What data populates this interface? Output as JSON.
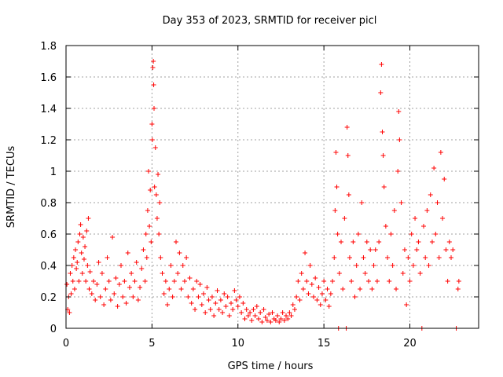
{
  "chart_data": {
    "type": "scatter",
    "title": "Day 353 of 2023, SRMTID for receiver picl",
    "xlabel": "GPS time / hours",
    "ylabel": "SRMTID / TECUs",
    "xlim": [
      0,
      24
    ],
    "ylim": [
      0,
      1.8
    ],
    "xticks": [
      0,
      5,
      10,
      15,
      20
    ],
    "xtick_labels": [
      "0",
      "5",
      "10",
      "15",
      "20"
    ],
    "yticks": [
      0,
      0.2,
      0.4,
      0.6,
      0.8,
      1,
      1.2,
      1.4,
      1.6,
      1.8
    ],
    "ytick_labels": [
      "0",
      "0.2",
      "0.4",
      "0.6",
      "0.8",
      "1",
      "1.2",
      "1.4",
      "1.6",
      "1.8"
    ],
    "grid": true,
    "marker": "+",
    "marker_color": "#ff0000",
    "series": [
      {
        "name": "SRMTID",
        "points": [
          [
            0.05,
            0.28
          ],
          [
            0.1,
            0.12
          ],
          [
            0.15,
            0.2
          ],
          [
            0.2,
            0.1
          ],
          [
            0.25,
            0.35
          ],
          [
            0.3,
            0.22
          ],
          [
            0.35,
            0.4
          ],
          [
            0.4,
            0.3
          ],
          [
            0.45,
            0.45
          ],
          [
            0.5,
            0.25
          ],
          [
            0.55,
            0.5
          ],
          [
            0.6,
            0.38
          ],
          [
            0.65,
            0.42
          ],
          [
            0.7,
            0.55
          ],
          [
            0.75,
            0.3
          ],
          [
            0.8,
            0.6
          ],
          [
            0.85,
            0.66
          ],
          [
            0.9,
            0.48
          ],
          [
            0.95,
            0.35
          ],
          [
            1.0,
            0.58
          ],
          [
            1.05,
            0.44
          ],
          [
            1.1,
            0.52
          ],
          [
            1.15,
            0.3
          ],
          [
            1.2,
            0.62
          ],
          [
            1.25,
            0.4
          ],
          [
            1.3,
            0.7
          ],
          [
            1.35,
            0.25
          ],
          [
            1.4,
            0.36
          ],
          [
            1.5,
            0.22
          ],
          [
            1.6,
            0.3
          ],
          [
            1.7,
            0.18
          ],
          [
            1.8,
            0.28
          ],
          [
            1.9,
            0.42
          ],
          [
            2.0,
            0.2
          ],
          [
            2.1,
            0.35
          ],
          [
            2.2,
            0.15
          ],
          [
            2.3,
            0.25
          ],
          [
            2.4,
            0.45
          ],
          [
            2.5,
            0.3
          ],
          [
            2.6,
            0.18
          ],
          [
            2.7,
            0.58
          ],
          [
            2.8,
            0.22
          ],
          [
            2.9,
            0.32
          ],
          [
            3.0,
            0.14
          ],
          [
            3.1,
            0.28
          ],
          [
            3.2,
            0.4
          ],
          [
            3.3,
            0.2
          ],
          [
            3.4,
            0.3
          ],
          [
            3.5,
            0.16
          ],
          [
            3.6,
            0.48
          ],
          [
            3.7,
            0.26
          ],
          [
            3.8,
            0.35
          ],
          [
            3.9,
            0.2
          ],
          [
            4.0,
            0.3
          ],
          [
            4.1,
            0.42
          ],
          [
            4.2,
            0.18
          ],
          [
            4.3,
            0.26
          ],
          [
            4.4,
            0.38
          ],
          [
            4.5,
            0.5
          ],
          [
            4.6,
            0.3
          ],
          [
            4.65,
            0.6
          ],
          [
            4.7,
            0.45
          ],
          [
            4.75,
            0.75
          ],
          [
            4.8,
            1.0
          ],
          [
            4.85,
            0.65
          ],
          [
            4.9,
            0.88
          ],
          [
            4.95,
            0.55
          ],
          [
            5.0,
            1.3
          ],
          [
            5.02,
            1.2
          ],
          [
            5.05,
            1.66
          ],
          [
            5.08,
            1.7
          ],
          [
            5.1,
            1.55
          ],
          [
            5.12,
            1.4
          ],
          [
            5.15,
            0.9
          ],
          [
            5.2,
            1.15
          ],
          [
            5.25,
            0.85
          ],
          [
            5.3,
            0.7
          ],
          [
            5.35,
            0.98
          ],
          [
            5.4,
            0.6
          ],
          [
            5.45,
            0.8
          ],
          [
            5.5,
            0.45
          ],
          [
            5.6,
            0.35
          ],
          [
            5.7,
            0.22
          ],
          [
            5.8,
            0.3
          ],
          [
            5.9,
            0.15
          ],
          [
            6.0,
            0.25
          ],
          [
            6.1,
            0.4
          ],
          [
            6.2,
            0.2
          ],
          [
            6.3,
            0.3
          ],
          [
            6.4,
            0.55
          ],
          [
            6.5,
            0.35
          ],
          [
            6.6,
            0.48
          ],
          [
            6.7,
            0.25
          ],
          [
            6.8,
            0.4
          ],
          [
            6.9,
            0.3
          ],
          [
            7.0,
            0.45
          ],
          [
            7.1,
            0.2
          ],
          [
            7.2,
            0.32
          ],
          [
            7.3,
            0.16
          ],
          [
            7.4,
            0.25
          ],
          [
            7.5,
            0.12
          ],
          [
            7.6,
            0.3
          ],
          [
            7.7,
            0.2
          ],
          [
            7.8,
            0.28
          ],
          [
            7.9,
            0.15
          ],
          [
            8.0,
            0.22
          ],
          [
            8.1,
            0.1
          ],
          [
            8.2,
            0.26
          ],
          [
            8.3,
            0.18
          ],
          [
            8.4,
            0.12
          ],
          [
            8.5,
            0.2
          ],
          [
            8.6,
            0.08
          ],
          [
            8.7,
            0.16
          ],
          [
            8.8,
            0.24
          ],
          [
            8.9,
            0.12
          ],
          [
            9.0,
            0.18
          ],
          [
            9.1,
            0.1
          ],
          [
            9.2,
            0.22
          ],
          [
            9.3,
            0.14
          ],
          [
            9.4,
            0.2
          ],
          [
            9.5,
            0.08
          ],
          [
            9.6,
            0.16
          ],
          [
            9.7,
            0.12
          ],
          [
            9.8,
            0.24
          ],
          [
            9.9,
            0.18
          ],
          [
            10.0,
            0.14
          ],
          [
            10.1,
            0.2
          ],
          [
            10.2,
            0.1
          ],
          [
            10.3,
            0.16
          ],
          [
            10.4,
            0.06
          ],
          [
            10.5,
            0.12
          ],
          [
            10.6,
            0.08
          ],
          [
            10.7,
            0.1
          ],
          [
            10.8,
            0.05
          ],
          [
            10.9,
            0.12
          ],
          [
            11.0,
            0.08
          ],
          [
            11.1,
            0.14
          ],
          [
            11.2,
            0.06
          ],
          [
            11.3,
            0.1
          ],
          [
            11.4,
            0.04
          ],
          [
            11.5,
            0.12
          ],
          [
            11.6,
            0.07
          ],
          [
            11.7,
            0.05
          ],
          [
            11.8,
            0.09
          ],
          [
            11.9,
            0.04
          ],
          [
            12.0,
            0.1
          ],
          [
            12.1,
            0.06
          ],
          [
            12.2,
            0.05
          ],
          [
            12.3,
            0.08
          ],
          [
            12.4,
            0.04
          ],
          [
            12.5,
            0.06
          ],
          [
            12.6,
            0.1
          ],
          [
            12.7,
            0.05
          ],
          [
            12.8,
            0.08
          ],
          [
            12.9,
            0.06
          ],
          [
            13.0,
            0.1
          ],
          [
            13.1,
            0.08
          ],
          [
            13.2,
            0.15
          ],
          [
            13.3,
            0.12
          ],
          [
            13.4,
            0.2
          ],
          [
            13.5,
            0.3
          ],
          [
            13.6,
            0.18
          ],
          [
            13.7,
            0.35
          ],
          [
            13.8,
            0.25
          ],
          [
            13.9,
            0.48
          ],
          [
            14.0,
            0.3
          ],
          [
            14.1,
            0.22
          ],
          [
            14.2,
            0.4
          ],
          [
            14.3,
            0.28
          ],
          [
            14.4,
            0.2
          ],
          [
            14.5,
            0.32
          ],
          [
            14.6,
            0.18
          ],
          [
            14.7,
            0.26
          ],
          [
            14.8,
            0.15
          ],
          [
            14.9,
            0.22
          ],
          [
            15.0,
            0.3
          ],
          [
            15.1,
            0.18
          ],
          [
            15.2,
            0.25
          ],
          [
            15.3,
            0.14
          ],
          [
            15.4,
            0.22
          ],
          [
            15.5,
            0.3
          ],
          [
            15.6,
            0.45
          ],
          [
            15.65,
            0.75
          ],
          [
            15.7,
            1.12
          ],
          [
            15.75,
            0.9
          ],
          [
            15.8,
            0.6
          ],
          [
            15.85,
            0.0
          ],
          [
            15.9,
            0.35
          ],
          [
            16.0,
            0.55
          ],
          [
            16.1,
            0.25
          ],
          [
            16.2,
            0.7
          ],
          [
            16.3,
            0.0
          ],
          [
            16.35,
            1.28
          ],
          [
            16.4,
            1.1
          ],
          [
            16.45,
            0.85
          ],
          [
            16.5,
            0.45
          ],
          [
            16.6,
            0.3
          ],
          [
            16.7,
            0.55
          ],
          [
            16.8,
            0.2
          ],
          [
            16.9,
            0.4
          ],
          [
            17.0,
            0.6
          ],
          [
            17.1,
            0.25
          ],
          [
            17.2,
            0.8
          ],
          [
            17.3,
            0.45
          ],
          [
            17.4,
            0.35
          ],
          [
            17.5,
            0.55
          ],
          [
            17.6,
            0.3
          ],
          [
            17.7,
            0.5
          ],
          [
            17.8,
            0.25
          ],
          [
            17.9,
            0.4
          ],
          [
            18.0,
            0.5
          ],
          [
            18.1,
            0.3
          ],
          [
            18.2,
            0.55
          ],
          [
            18.3,
            1.5
          ],
          [
            18.35,
            1.68
          ],
          [
            18.4,
            1.25
          ],
          [
            18.45,
            1.1
          ],
          [
            18.5,
            0.9
          ],
          [
            18.6,
            0.65
          ],
          [
            18.7,
            0.45
          ],
          [
            18.8,
            0.3
          ],
          [
            18.9,
            0.6
          ],
          [
            19.0,
            0.4
          ],
          [
            19.1,
            0.75
          ],
          [
            19.2,
            0.25
          ],
          [
            19.3,
            1.0
          ],
          [
            19.35,
            1.38
          ],
          [
            19.4,
            1.2
          ],
          [
            19.5,
            0.8
          ],
          [
            19.6,
            0.35
          ],
          [
            19.7,
            0.5
          ],
          [
            19.8,
            0.15
          ],
          [
            19.9,
            0.45
          ],
          [
            20.0,
            0.3
          ],
          [
            20.1,
            0.6
          ],
          [
            20.2,
            0.4
          ],
          [
            20.3,
            0.7
          ],
          [
            20.4,
            0.5
          ],
          [
            20.5,
            0.55
          ],
          [
            20.6,
            0.35
          ],
          [
            20.7,
            0.0
          ],
          [
            20.8,
            0.65
          ],
          [
            20.9,
            0.45
          ],
          [
            21.0,
            0.75
          ],
          [
            21.1,
            0.4
          ],
          [
            21.2,
            0.85
          ],
          [
            21.3,
            0.55
          ],
          [
            21.4,
            1.02
          ],
          [
            21.5,
            0.6
          ],
          [
            21.6,
            0.8
          ],
          [
            21.7,
            0.45
          ],
          [
            21.8,
            1.12
          ],
          [
            21.9,
            0.7
          ],
          [
            22.0,
            0.95
          ],
          [
            22.1,
            0.5
          ],
          [
            22.2,
            0.3
          ],
          [
            22.3,
            0.55
          ],
          [
            22.4,
            0.45
          ],
          [
            22.5,
            0.5
          ],
          [
            22.7,
            0.0
          ],
          [
            22.8,
            0.25
          ],
          [
            22.85,
            0.3
          ]
        ]
      }
    ]
  }
}
